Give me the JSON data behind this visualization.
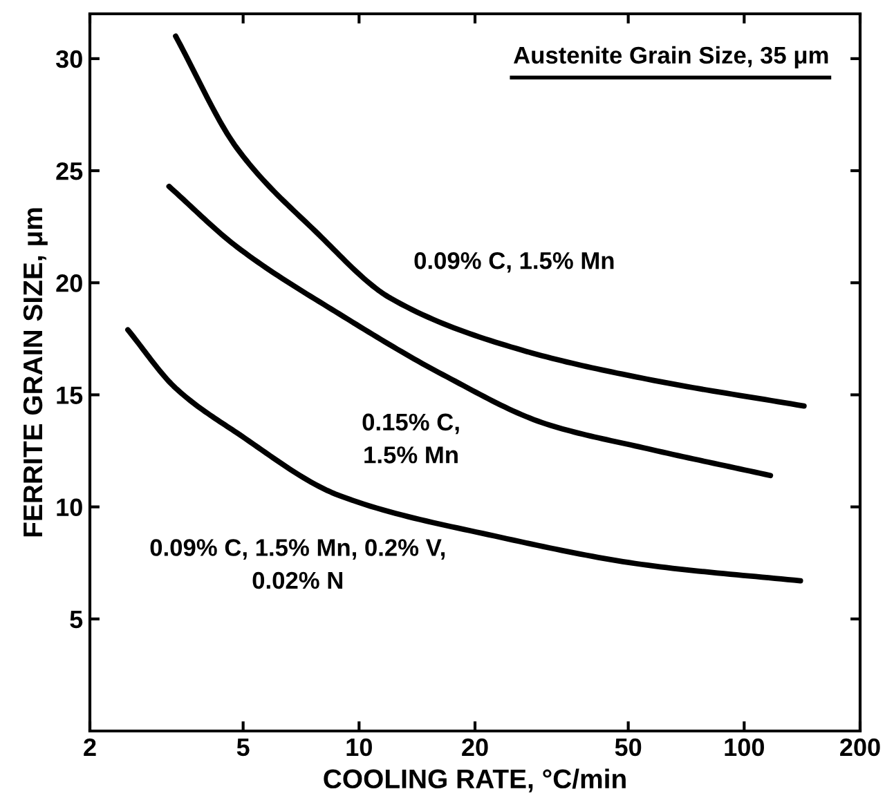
{
  "chart_data": {
    "type": "line",
    "xlabel": "COOLING RATE, °C/min",
    "ylabel": "FERRITE GRAIN SIZE, μm",
    "log": "x",
    "xlim": [
      2,
      200
    ],
    "xticks": [
      2,
      5,
      10,
      20,
      50,
      100,
      200
    ],
    "ylim": [
      0,
      32
    ],
    "yticks": [
      5,
      10,
      15,
      20,
      25,
      30
    ],
    "grid": false,
    "marker": "none",
    "line_style": "solid",
    "series": [
      {
        "color": "#000000",
        "x": [
          3.34,
          4.82,
          7.7,
          12.1,
          26.4,
          56,
          143
        ],
        "values": [
          31.0,
          26.0,
          22.3,
          19.3,
          17.0,
          15.7,
          14.5
        ]
      },
      {
        "color": "#000000",
        "x": [
          3.21,
          4.82,
          8.9,
          16.5,
          30.6,
          56,
          117
        ],
        "values": [
          24.3,
          21.6,
          18.6,
          15.9,
          13.7,
          12.6,
          11.4
        ]
      },
      {
        "color": "#000000",
        "x": [
          2.51,
          3.34,
          4.82,
          8.9,
          22.5,
          56,
          140
        ],
        "values": [
          17.9,
          15.3,
          13.3,
          10.5,
          8.7,
          7.4,
          6.7
        ]
      }
    ],
    "annotations": [
      "Austenite Grain Size, 35 μm",
      "0.09% C, 1.5% Mn",
      "0.15% C,\n1.5% Mn",
      "0.09% C, 1.5% Mn, 0.2% V,\n0.02% N"
    ]
  }
}
